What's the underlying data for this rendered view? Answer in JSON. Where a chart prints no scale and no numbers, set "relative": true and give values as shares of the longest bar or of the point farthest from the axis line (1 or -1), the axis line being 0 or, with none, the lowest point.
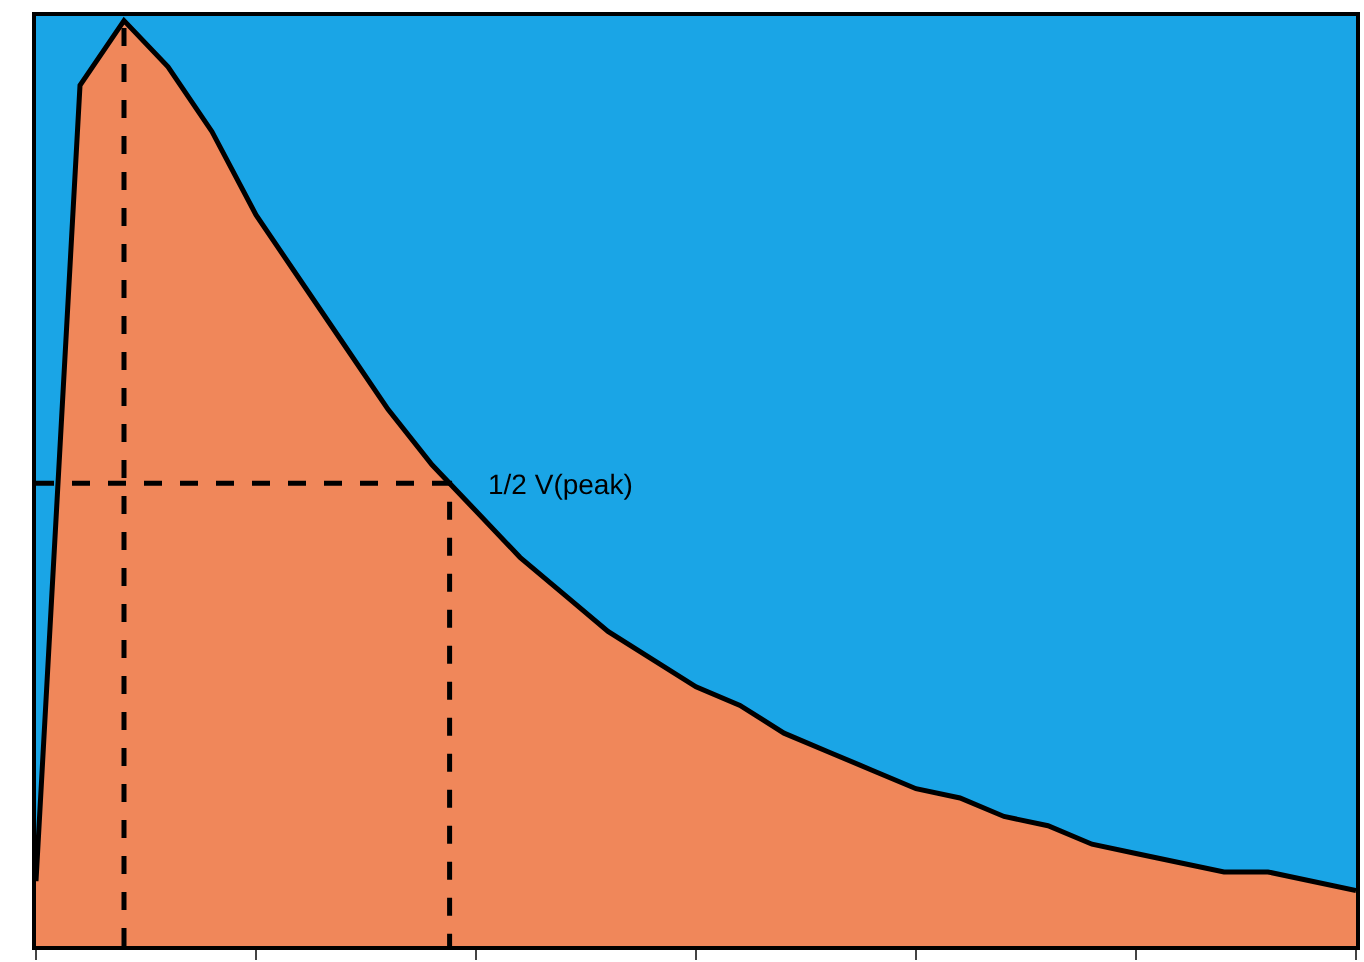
{
  "chart_data": {
    "type": "area",
    "relative": true,
    "categories": [
      null,
      null,
      null,
      null,
      null,
      null,
      null,
      null,
      null,
      null,
      null,
      null,
      null,
      null,
      null,
      null,
      null,
      null,
      null,
      null,
      null,
      null,
      null,
      null,
      null,
      null,
      null,
      null,
      null,
      null,
      null
    ],
    "series": [
      {
        "color": "#f0875a",
        "values": [
          0.07,
          0.93,
          1.0,
          0.95,
          0.88,
          0.79,
          0.72,
          0.65,
          0.58,
          0.52,
          0.47,
          0.42,
          0.38,
          0.34,
          0.31,
          0.28,
          0.26,
          0.23,
          0.21,
          0.19,
          0.17,
          0.16,
          0.14,
          0.13,
          0.11,
          0.1,
          0.09,
          0.08,
          0.08,
          0.07,
          0.06
        ]
      }
    ],
    "ref_lines": [
      {
        "axis": "y",
        "value": 0.5,
        "line_style": "dashed",
        "color": "#000000"
      }
    ],
    "annotations": [
      "1/2 V(peak)"
    ],
    "line_style": "solid",
    "marker": "none"
  }
}
